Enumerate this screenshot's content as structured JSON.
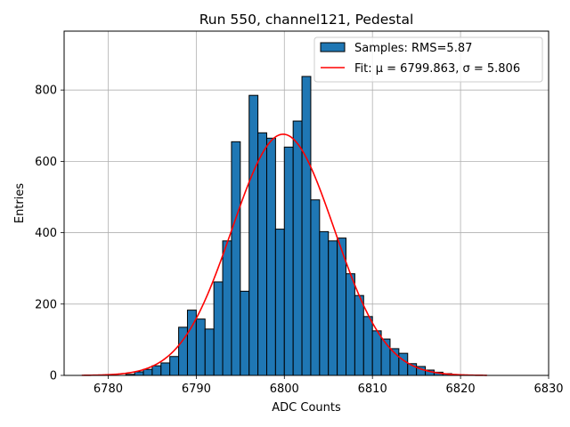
{
  "chart_data": {
    "type": "bar",
    "title": "Run 550, channel121, Pedestal",
    "xlabel": "ADC Counts",
    "ylabel": "Entries",
    "xlim": [
      6775,
      6830
    ],
    "ylim": [
      0,
      965
    ],
    "xticks": [
      6780,
      6790,
      6800,
      6810,
      6820,
      6830
    ],
    "yticks": [
      0,
      200,
      400,
      600,
      800
    ],
    "grid": true,
    "legend_position": "top-right",
    "bin_width": 1,
    "bins": [
      {
        "x": 6782,
        "y": 3
      },
      {
        "x": 6783,
        "y": 10
      },
      {
        "x": 6784,
        "y": 17
      },
      {
        "x": 6785,
        "y": 27
      },
      {
        "x": 6786,
        "y": 35
      },
      {
        "x": 6787,
        "y": 53
      },
      {
        "x": 6788,
        "y": 135
      },
      {
        "x": 6789,
        "y": 183
      },
      {
        "x": 6790,
        "y": 158
      },
      {
        "x": 6791,
        "y": 130
      },
      {
        "x": 6792,
        "y": 262
      },
      {
        "x": 6793,
        "y": 377
      },
      {
        "x": 6794,
        "y": 655
      },
      {
        "x": 6795,
        "y": 236
      },
      {
        "x": 6796,
        "y": 785
      },
      {
        "x": 6797,
        "y": 680
      },
      {
        "x": 6798,
        "y": 665
      },
      {
        "x": 6799,
        "y": 410
      },
      {
        "x": 6800,
        "y": 640
      },
      {
        "x": 6801,
        "y": 713
      },
      {
        "x": 6802,
        "y": 838
      },
      {
        "x": 6803,
        "y": 492
      },
      {
        "x": 6804,
        "y": 403
      },
      {
        "x": 6805,
        "y": 377
      },
      {
        "x": 6806,
        "y": 385
      },
      {
        "x": 6807,
        "y": 285
      },
      {
        "x": 6808,
        "y": 224
      },
      {
        "x": 6809,
        "y": 165
      },
      {
        "x": 6810,
        "y": 125
      },
      {
        "x": 6811,
        "y": 102
      },
      {
        "x": 6812,
        "y": 75
      },
      {
        "x": 6813,
        "y": 62
      },
      {
        "x": 6814,
        "y": 33
      },
      {
        "x": 6815,
        "y": 25
      },
      {
        "x": 6816,
        "y": 15
      },
      {
        "x": 6817,
        "y": 9
      },
      {
        "x": 6818,
        "y": 5
      },
      {
        "x": 6819,
        "y": 2
      }
    ],
    "series": [
      {
        "name": "Samples: RMS=5.87",
        "type": "histogram",
        "color": "#1f77b4",
        "edgecolor": "#000000"
      },
      {
        "name": "Fit: μ = 6799.863, σ = 5.806",
        "type": "line",
        "color": "#ff0000",
        "model": "gaussian",
        "mu": 6799.863,
        "sigma": 5.806,
        "amplitude": 676,
        "x_range": [
          6777,
          6823
        ]
      }
    ]
  }
}
